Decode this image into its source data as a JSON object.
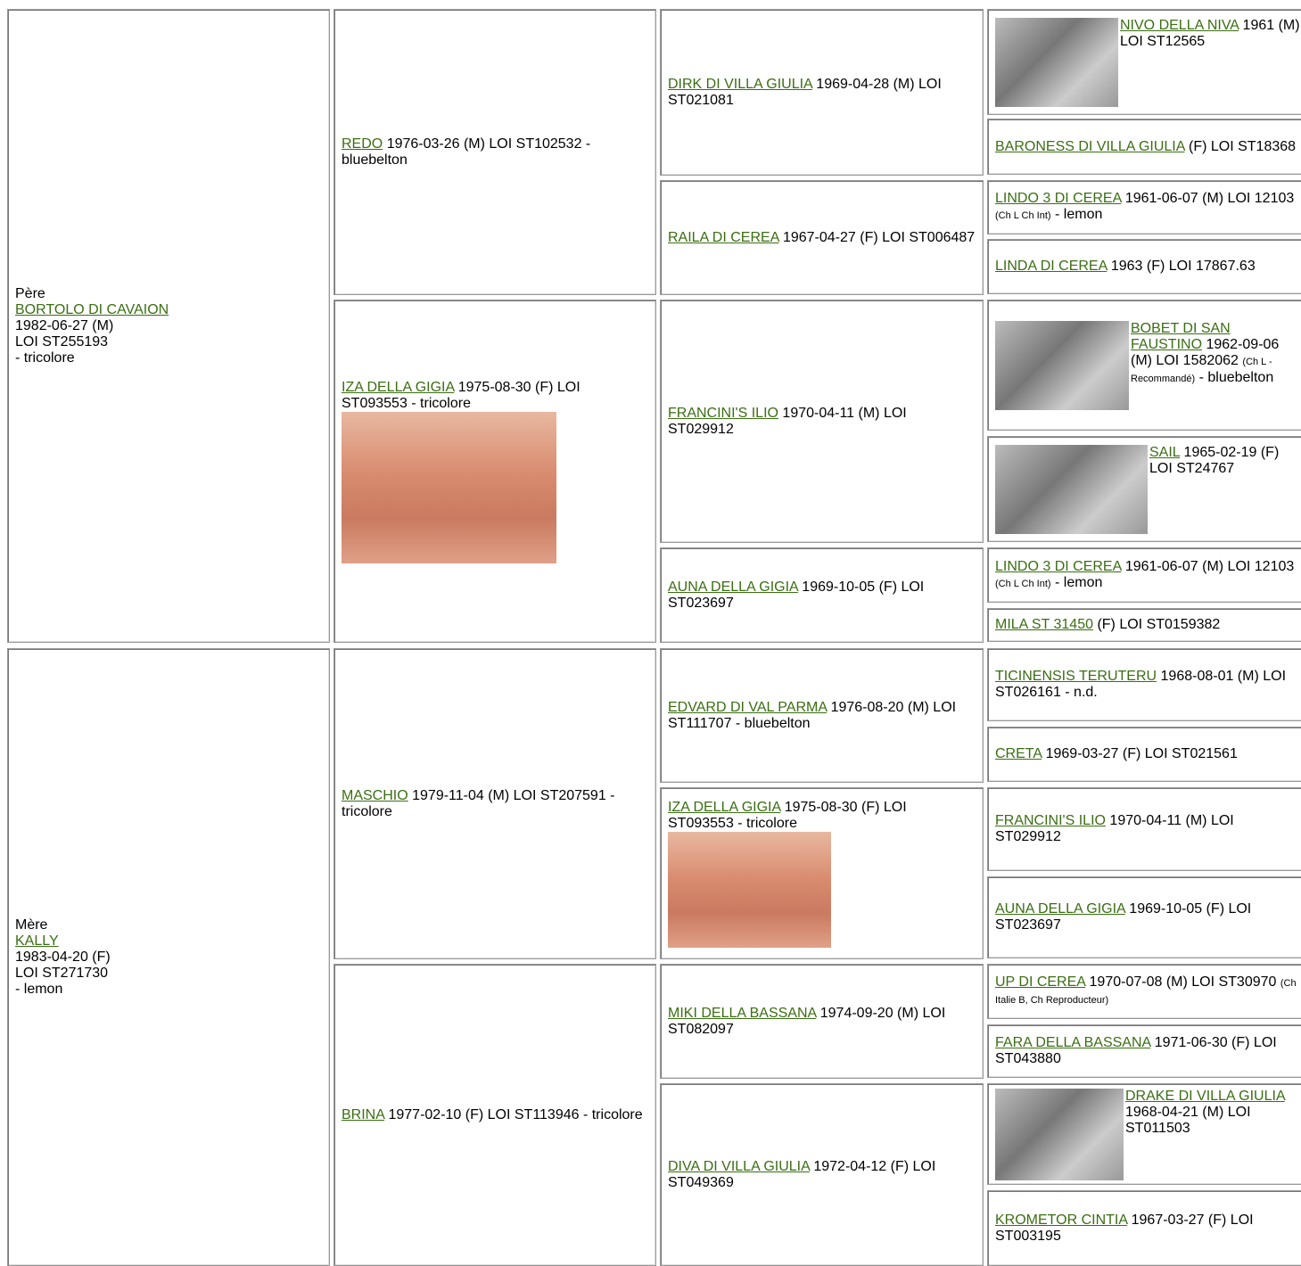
{
  "sire": {
    "label": "Père",
    "name": "BORTOLO DI CAVAION",
    "lines": [
      "1982-06-27 (M)",
      "LOI ST255193",
      "- tricolore"
    ]
  },
  "dam": {
    "label": "Mère",
    "name": "KALLY",
    "lines": [
      "1983-04-20 (F)",
      "LOI ST271730",
      "- lemon"
    ]
  },
  "generation2": [
    {
      "name": "REDO",
      "text": "1976-03-26 (M) LOI ST102532 - bluebelton"
    },
    {
      "name": "IZA DELLA GIGIA",
      "text": "1975-08-30 (F) LOI ST093553 - tricolore"
    },
    {
      "name": "MASCHIO",
      "text": "1979-11-04 (M) LOI ST207591 - tricolore"
    },
    {
      "name": "BRINA",
      "text": "1977-02-10 (F) LOI ST113946 - tricolore"
    }
  ],
  "generation3": [
    {
      "name": "DIRK DI VILLA GIULIA",
      "text": "1969-04-28 (M) LOI ST021081"
    },
    {
      "name": "RAILA DI CEREA",
      "text": "1967-04-27 (F) LOI ST006487"
    },
    {
      "name": "FRANCINI'S ILIO",
      "text": "1970-04-11 (M) LOI ST029912"
    },
    {
      "name": "AUNA DELLA GIGIA",
      "text": "1969-10-05 (F) LOI ST023697"
    },
    {
      "name": "EDVARD DI VAL PARMA",
      "text": "1976-08-20 (M) LOI ST111707 - bluebelton"
    },
    {
      "name": "IZA DELLA GIGIA",
      "text": "1975-08-30 (F) LOI ST093553 - tricolore"
    },
    {
      "name": "MIKI DELLA BASSANA",
      "text": "1974-09-20 (M) LOI ST082097"
    },
    {
      "name": "DIVA DI VILLA GIULIA",
      "text": "1972-04-12 (F) LOI ST049369"
    }
  ],
  "generation4": [
    {
      "name": "NIVO DELLA NIVA",
      "text": "1961 (M) LOI ST12565"
    },
    {
      "name": "BARONESS DI VILLA GIULIA",
      "text": "(F) LOI ST18368"
    },
    {
      "name": "LINDO 3 DI CEREA",
      "text": "1961-06-07 (M) LOI 12103",
      "note": "(Ch L Ch Int)",
      "tail": "- lemon"
    },
    {
      "name": "LINDA DI CEREA",
      "text": "1963 (F) LOI 17867.63"
    },
    {
      "name": "BOBET DI SAN FAUSTINO",
      "text": "1962-09-06 (M) LOI 1582062",
      "note": "(Ch L - Recommandé)",
      "tail": "- bluebelton"
    },
    {
      "name": "SAIL",
      "text": "1965-02-19 (F) LOI ST24767"
    },
    {
      "name": "LINDO 3 DI CEREA",
      "text": "1961-06-07 (M) LOI 12103",
      "note": "(Ch L Ch Int)",
      "tail": "- lemon"
    },
    {
      "name": "MILA ST 31450",
      "text": "(F) LOI ST0159382"
    },
    {
      "name": "TICINENSIS TERUTERU",
      "text": "1968-08-01 (M) LOI ST026161 - n.d."
    },
    {
      "name": "CRETA",
      "text": "1969-03-27 (F) LOI ST021561"
    },
    {
      "name": "FRANCINI'S ILIO",
      "text": "1970-04-11 (M) LOI ST029912"
    },
    {
      "name": "AUNA DELLA GIGIA",
      "text": "1969-10-05 (F) LOI ST023697"
    },
    {
      "name": "UP DI CEREA",
      "text": "1970-07-08 (M) LOI ST30970",
      "note": "(Ch Italie B, Ch Reproducteur)"
    },
    {
      "name": "FARA DELLA BASSANA",
      "text": "1971-06-30 (F) LOI ST043880"
    },
    {
      "name": "DRAKE DI VILLA GIULIA",
      "text": "1968-04-21 (M) LOI ST011503"
    },
    {
      "name": "KROMETOR CINTIA",
      "text": "1967-03-27 (F) LOI ST003195"
    }
  ]
}
